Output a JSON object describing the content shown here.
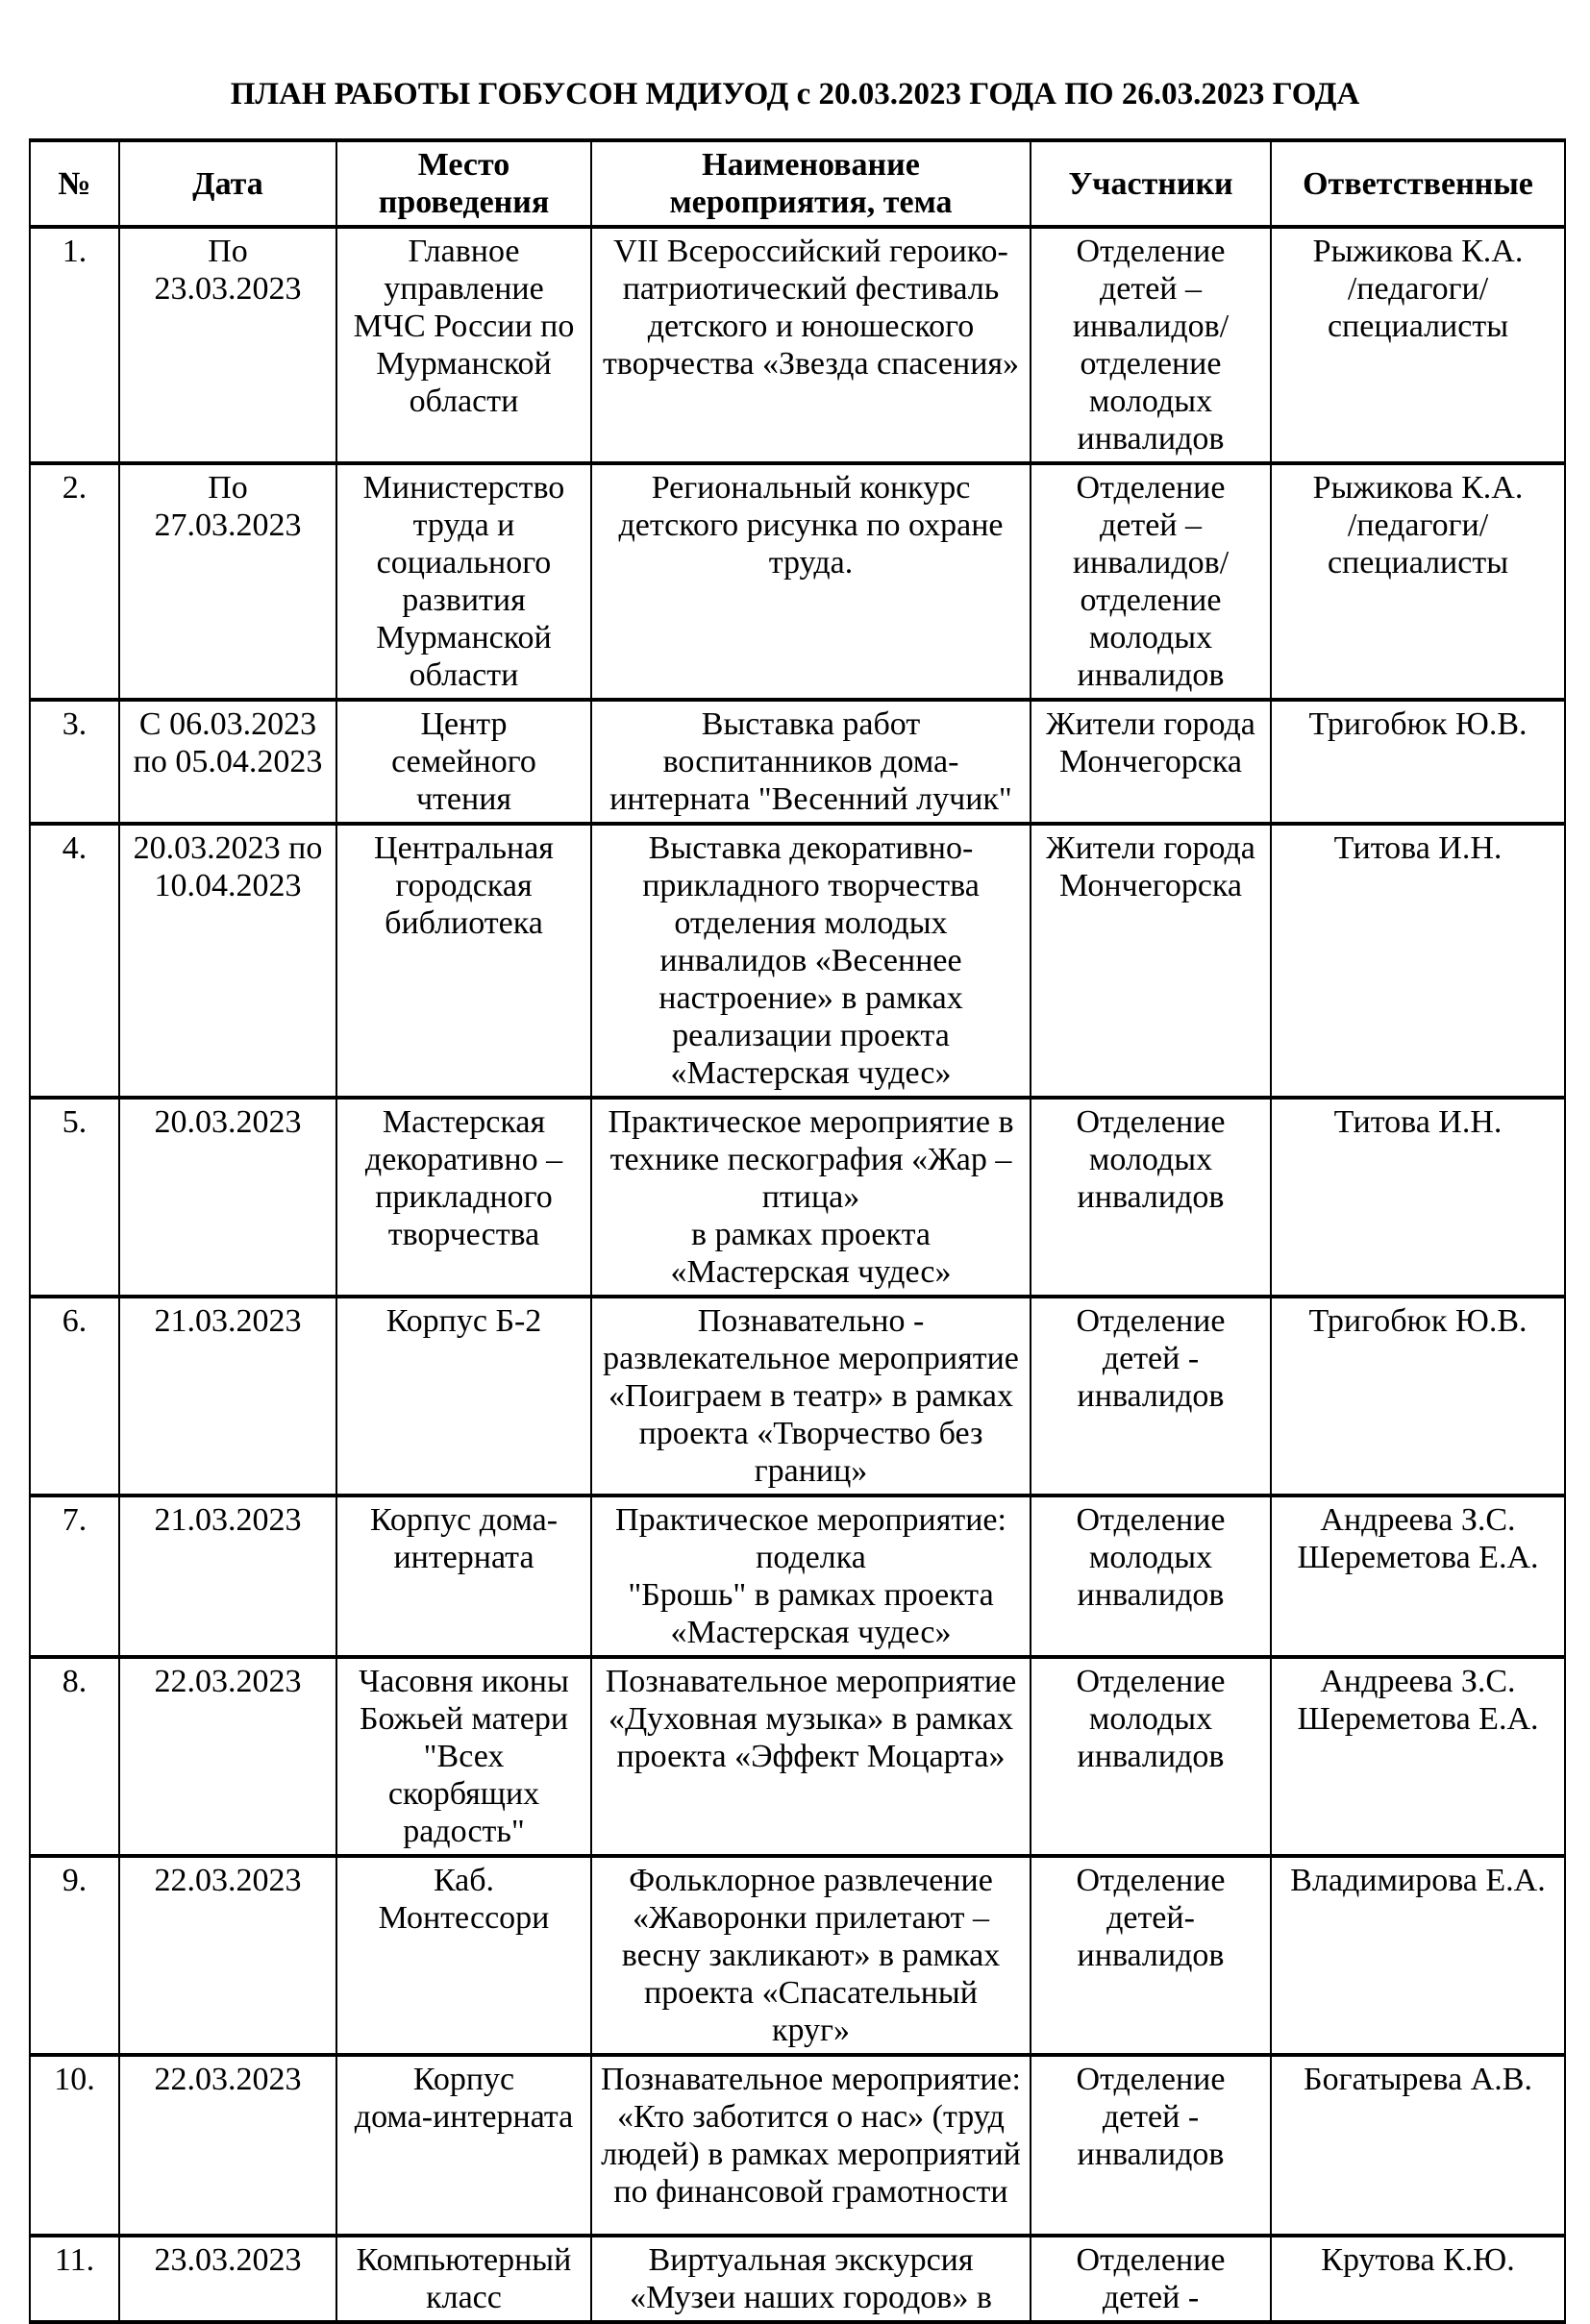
{
  "title": "ПЛАН РАБОТЫ ГОБУСОН МДИУОД с 20.03.2023 ГОДА ПО 26.03.2023 ГОДА",
  "table": {
    "columns": [
      "№",
      "Дата",
      "Место\nпроведения",
      "Наименование\nмероприятия, тема",
      "Участники",
      "Ответственные"
    ],
    "rows": [
      {
        "n": "1.",
        "date": "По\n23.03.2023",
        "place": "Главное\nуправление\nМЧС России по\nМурманской\nобласти",
        "event": "VII Всероссийский героико-\nпатриотический фестиваль\nдетского и юношеского\nтворчества «Звезда спасения»",
        "participants": "Отделение\nдетей –\nинвалидов/\nотделение\nмолодых\nинвалидов",
        "responsible": "Рыжикова К.А.\n/педагоги/\nспециалисты"
      },
      {
        "n": "2.",
        "date": "По\n27.03.2023",
        "place": "Министерство\nтруда и\nсоциального\nразвития\nМурманской\nобласти",
        "event": "Региональный конкурс\nдетского рисунка по охране\nтруда.",
        "participants": "Отделение\nдетей –\nинвалидов/\nотделение\nмолодых\nинвалидов",
        "responsible": "Рыжикова К.А.\n/педагоги/\nспециалисты"
      },
      {
        "n": "3.",
        "date": "С 06.03.2023\nпо 05.04.2023",
        "place": "Центр\nсемейного\nчтения",
        "event": "Выставка работ\nвоспитанников дома-\nинтерната \"Весенний лучик\"",
        "participants": "Жители города\nМончегорска",
        "responsible": "Тригобюк Ю.В."
      },
      {
        "n": "4.",
        "date": "20.03.2023 по\n10.04.2023",
        "place": "Центральная\nгородская\nбиблиотека",
        "event": "Выставка декоративно-\nприкладного творчества\nотделения молодых\nинвалидов «Весеннее\nнастроение» в рамках\nреализации проекта\n«Мастерская чудес»",
        "participants": "Жители города\nМончегорска",
        "responsible": "Титова И.Н."
      },
      {
        "n": "5.",
        "date": "20.03.2023",
        "place": "Мастерская\nдекоративно –\nприкладного\nтворчества",
        "event": "Практическое мероприятие в\nтехнике пескография «Жар –\nптица»\nв рамках проекта\n«Мастерская чудес»",
        "participants": "Отделение\nмолодых\nинвалидов",
        "responsible": "Титова И.Н."
      },
      {
        "n": "6.",
        "date": "21.03.2023",
        "place": "Корпус Б-2",
        "event": "Познавательно -\nразвлекательное мероприятие\n«Поиграем в театр» в рамках\nпроекта «Творчество без\nграниц»",
        "participants": "Отделение\nдетей -\nинвалидов",
        "responsible": "Тригобюк Ю.В."
      },
      {
        "n": "7.",
        "date": "21.03.2023",
        "place": "Корпус дома-\nинтерната",
        "event": "Практическое мероприятие:\nподелка\n\"Брошь\" в рамках проекта\n«Мастерская чудес»",
        "participants": "Отделение\nмолодых\nинвалидов",
        "responsible": "Андреева З.С.\nШереметова Е.А."
      },
      {
        "n": "8.",
        "date": "22.03.2023",
        "place": "Часовня иконы\nБожьей матери\n\"Всех\nскорбящих\nрадость\"",
        "event": "Познавательное мероприятие\n«Духовная музыка» в рамках\nпроекта «Эффект Моцарта»",
        "participants": "Отделение\nмолодых\nинвалидов",
        "responsible": "Андреева З.С.\nШереметова Е.А."
      },
      {
        "n": "9.",
        "date": "22.03.2023",
        "place": "Каб.\nМонтессори",
        "event": "Фольклорное развлечение\n«Жаворонки прилетают –\nвесну закликают» в рамках\nпроекта  «Спасательный\nкруг»",
        "participants": "Отделение\nдетей-\nинвалидов",
        "responsible": "Владимирова Е.А."
      },
      {
        "n": "10.",
        "date": "22.03.2023",
        "place": "Корпус\nдома-интерната",
        "event": "Познавательное мероприятие:\n«Кто заботится о нас» (труд\nлюдей) в рамках мероприятий\nпо финансовой грамотности",
        "participants": "Отделение\nдетей -\nинвалидов",
        "responsible": "Богатырева А.В."
      },
      {
        "n": "11.",
        "date": "23.03.2023",
        "place": "Компьютерный\nкласс",
        "event": "Виртуальная экскурсия\n«Музеи наших городов» в",
        "participants": "Отделение\nдетей -",
        "responsible": "Крутова К.Ю."
      }
    ]
  }
}
